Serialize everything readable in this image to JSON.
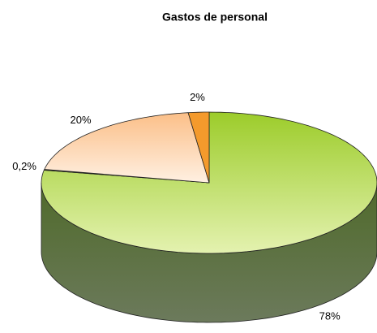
{
  "chart_data": {
    "type": "pie",
    "title": "Gastos de personal",
    "values": [
      78,
      0.2,
      20,
      2
    ],
    "value_labels": [
      "78%",
      "0,2%",
      "20%",
      "2%"
    ],
    "colors": [
      "#b5dc5a",
      "#3a3a2a",
      "#fcd2a8",
      "#f49a2c"
    ]
  }
}
